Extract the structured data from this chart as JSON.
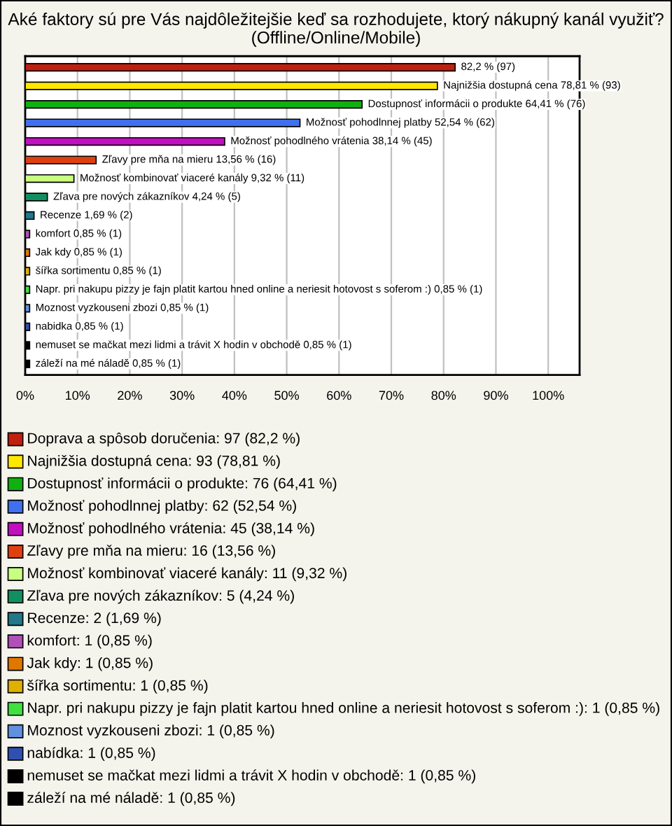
{
  "chart_data": {
    "type": "bar",
    "orientation": "horizontal",
    "title": "Aké faktory sú pre Vás najdôležitejšie keď sa rozhodujete, ktorý nákupný kanál využiť? (Offline/Online/Mobile)",
    "categories": [
      null,
      null,
      null,
      null,
      null,
      null,
      null,
      null,
      null,
      null,
      null,
      null,
      null,
      null,
      null,
      null,
      null
    ],
    "values": [
      82.2,
      78.81,
      64.41,
      52.54,
      38.14,
      13.56,
      9.32,
      4.24,
      1.69,
      0.85,
      0.85,
      0.85,
      0.85,
      0.85,
      0.85,
      0.85,
      0.85
    ],
    "colors": [
      "#c02010",
      "#ffe800",
      "#10b010",
      "#4070f0",
      "#c010c0",
      "#e04010",
      "#c8ff80",
      "#109060",
      "#207888",
      "#b050b8",
      "#e07800",
      "#e0b000",
      "#40e040",
      "#6090e0",
      "#3050b0",
      "#000000",
      "#000000"
    ],
    "value_labels": [
      "82,2 % (97)",
      "Najnižšia dostupná cena 78,81 % (93)",
      "Dostupnosť informácii o produkte 64,41 % (76)",
      "Možnosť pohodlnnej platby 52,54 % (62)",
      "Možnosť pohodlného vrátenia 38,14 % (45)",
      "Zľavy pre mňa na mieru 13,56 % (16)",
      "Možnosť kombinovať viaceré kanály 9,32 % (11)",
      "Zľava pre nových zákazníkov 4,24 % (5)",
      "Recenze 1,69 % (2)",
      "komfort 0,85 % (1)",
      "Jak kdy 0,85 % (1)",
      "šířka sortimentu 0,85 % (1)",
      "Napr. pri nakupu pizzy je fajn platit kartou hned online a neriesit hotovost s soferom :) 0,85 % (1)",
      "Moznost vyzkouseni zbozi 0,85 % (1)",
      "nabidka 0,85 % (1)",
      "nemuset se mačkat mezi lidmi a trávit X hodin v obchodě 0,85 % (1)",
      "záleží na mé náladě 0,85 % (1)"
    ],
    "xlim": [
      0,
      106
    ],
    "xticks": [
      {
        "value": 0,
        "label": "0%"
      },
      {
        "value": 10,
        "label": "10%"
      },
      {
        "value": 20,
        "label": "20%"
      },
      {
        "value": 30,
        "label": "30%"
      },
      {
        "value": 40,
        "label": "40%"
      },
      {
        "value": 50,
        "label": "50%"
      },
      {
        "value": 60,
        "label": "60%"
      },
      {
        "value": 70,
        "label": "70%"
      },
      {
        "value": 80,
        "label": "80%"
      },
      {
        "value": 90,
        "label": "90%"
      },
      {
        "value": 100,
        "label": "100%"
      }
    ],
    "grid": "x",
    "annotations": [
      "Doprava a spôsob doručenia: 97 (82,2 %)",
      "Najnižšia dostupná cena: 93 (78,81 %)",
      "Dostupnosť informácii o produkte: 76 (64,41 %)",
      "Možnosť pohodlnnej platby: 62 (52,54 %)",
      "Možnosť pohodlného vrátenia: 45 (38,14 %)",
      "Zľavy pre mňa na mieru: 16 (13,56 %)",
      "Možnosť kombinovať viaceré kanály: 11 (9,32 %)",
      "Zľava pre nových zákazníkov: 5 (4,24 %)",
      "Recenze: 2 (1,69 %)",
      "komfort: 1 (0,85 %)",
      "Jak kdy: 1 (0,85 %)",
      "šířka sortimentu: 1 (0,85 %)",
      "Napr. pri nakupu pizzy je fajn platit kartou hned online a neriesit hotovost s soferom :): 1 (0,85 %)",
      "Moznost vyzkouseni zbozi: 1 (0,85 %)",
      "nabídka: 1 (0,85 %)",
      "nemuset se mačkat mezi lidmi a trávit X hodin v obchodě: 1 (0,85 %)",
      "záleží na mé náladě: 1 (0,85 %)"
    ]
  }
}
